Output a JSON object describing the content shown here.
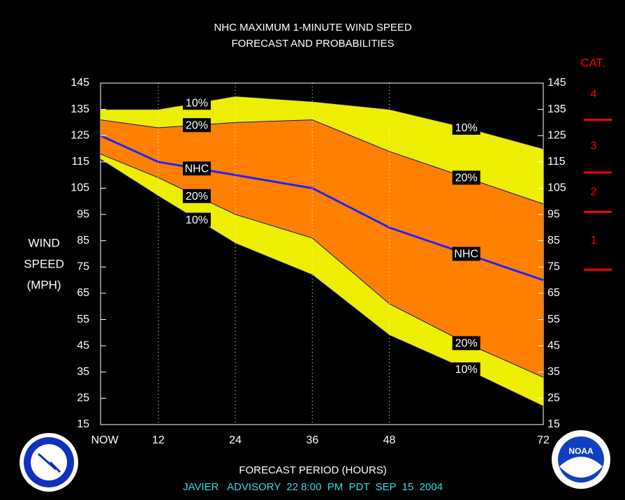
{
  "chart_data": {
    "type": "band",
    "title": [
      "NHC MAXIMUM 1-MINUTE WIND SPEED",
      "FORECAST AND PROBABILITIES"
    ],
    "y_label": [
      "WIND",
      "SPEED",
      "(MPH)"
    ],
    "x_label": "FORECAST PERIOD (HOURS)",
    "footer": "JAVIER   ADVISORY  22 8:00  PM  PDT  SEP  15  2004",
    "x": [
      3,
      12,
      24,
      36,
      48,
      60,
      72
    ],
    "xlim": [
      3,
      72
    ],
    "xticks": [
      {
        "value": 3,
        "label": "NOW"
      },
      12,
      24,
      36,
      48,
      72
    ],
    "ylim": [
      15,
      145
    ],
    "yticks": [
      15,
      25,
      35,
      45,
      55,
      65,
      75,
      85,
      95,
      105,
      115,
      125,
      135,
      145
    ],
    "grid": true,
    "series": [
      {
        "name": "10%",
        "color": "#101090",
        "fill": "#eeee00",
        "values": [
          135,
          135,
          140,
          138,
          135,
          128,
          120
        ]
      },
      {
        "name": "20%",
        "color": "#101090",
        "fill": "#ff8000",
        "values": [
          131,
          128,
          130,
          131,
          119,
          109,
          99
        ]
      },
      {
        "name": "NHC",
        "color": "#2222ff",
        "values": [
          125,
          115,
          110,
          105,
          90,
          80,
          70
        ]
      },
      {
        "name": "20%",
        "color": "#101090",
        "values": [
          118,
          109,
          95,
          86,
          61,
          46,
          33
        ]
      },
      {
        "name": "10%",
        "color": "#101090",
        "values": [
          116,
          102,
          84,
          72,
          49,
          36,
          22
        ]
      }
    ],
    "label_x": [
      18,
      60
    ],
    "category_scale": {
      "title": "CAT.",
      "color": "#ff0000",
      "thresholds": [
        74,
        96,
        111,
        131
      ],
      "labels": [
        "1",
        "2",
        "3",
        "4"
      ]
    },
    "logo_text": "NOAA"
  }
}
